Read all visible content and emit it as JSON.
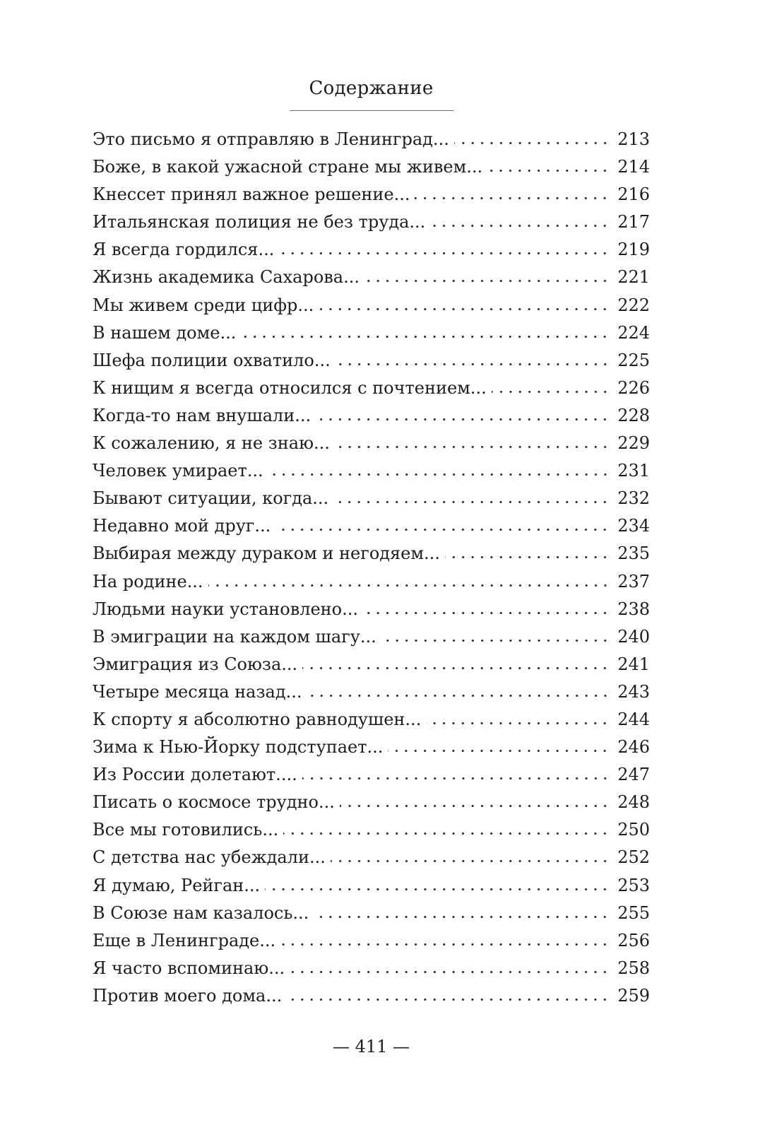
{
  "page": {
    "title": "Содержание",
    "footer_page_number": "— 411 —"
  },
  "toc": {
    "entries": [
      {
        "title": "Это письмо я отправляю в Ленинград...",
        "page": "213"
      },
      {
        "title": "Боже, в какой ужасной стране мы живем...",
        "page": "214"
      },
      {
        "title": "Кнессет принял важное решение...",
        "page": "216"
      },
      {
        "title": "Итальянская полиция не без труда...",
        "page": "217"
      },
      {
        "title": "Я всегда гордился...",
        "page": "219"
      },
      {
        "title": "Жизнь академика Сахарова...",
        "page": "221"
      },
      {
        "title": "Мы живем среди цифр...",
        "page": "222"
      },
      {
        "title": "В нашем доме...",
        "page": "224"
      },
      {
        "title": "Шефа полиции охватило...",
        "page": "225"
      },
      {
        "title": "К нищим я всегда относился с почтением...",
        "page": "226"
      },
      {
        "title": "Когда-то нам внушали...",
        "page": "228"
      },
      {
        "title": "К сожалению, я не знаю...",
        "page": "229"
      },
      {
        "title": "Человек умирает...",
        "page": "231"
      },
      {
        "title": "Бывают ситуации, когда...",
        "page": "232"
      },
      {
        "title": "Недавно мой друг...",
        "page": "234"
      },
      {
        "title": "Выбирая между дураком и негодяем...",
        "page": "235"
      },
      {
        "title": "На родине...",
        "page": "237"
      },
      {
        "title": "Людьми науки установлено...",
        "page": "238"
      },
      {
        "title": "В эмиграции на каждом шагу...",
        "page": "240"
      },
      {
        "title": "Эмиграция из Союза...",
        "page": "241"
      },
      {
        "title": "Четыре месяца назад...",
        "page": "243"
      },
      {
        "title": "К спорту я абсолютно равнодушен...",
        "page": "244"
      },
      {
        "title": "Зима к Нью-Йорку подступает...",
        "page": "246"
      },
      {
        "title": "Из России долетают....",
        "page": "247"
      },
      {
        "title": "Писать о космосе трудно...",
        "page": "248"
      },
      {
        "title": "Все мы готовились...",
        "page": "250"
      },
      {
        "title": "С детства нас убеждали...",
        "page": "252"
      },
      {
        "title": "Я думаю, Рейган...",
        "page": "253"
      },
      {
        "title": "В Союзе нам казалось...",
        "page": "255"
      },
      {
        "title": "Еще в Ленинграде...",
        "page": "256"
      },
      {
        "title": "Я часто вспоминаю...",
        "page": "258"
      },
      {
        "title": "Против моего дома...",
        "page": "259"
      }
    ]
  }
}
